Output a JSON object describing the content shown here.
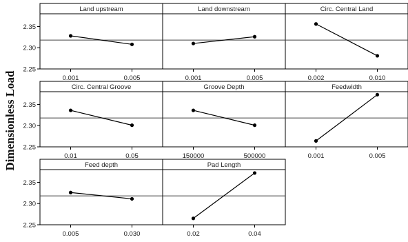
{
  "chart_data": {
    "type": "line",
    "ylabel": "Dimensionless Load",
    "reference_line": 2.318,
    "ylim": [
      2.25,
      2.38
    ],
    "yticks": [
      "2.25",
      "2.30",
      "2.35"
    ],
    "panels": [
      {
        "title": "Land upstream",
        "x": [
          "0.001",
          "0.005"
        ],
        "y": [
          2.328,
          2.308
        ]
      },
      {
        "title": "Land downstream",
        "x": [
          "0.001",
          "0.005"
        ],
        "y": [
          2.31,
          2.326
        ]
      },
      {
        "title": "Circ. Central Land",
        "x": [
          "0.002",
          "0.010"
        ],
        "y": [
          2.356,
          2.281
        ]
      },
      {
        "title": "Circ. Central Groove",
        "x": [
          "0.01",
          "0.05"
        ],
        "y": [
          2.336,
          2.301
        ]
      },
      {
        "title": "Groove Depth",
        "x": [
          "150000",
          "500000"
        ],
        "y": [
          2.336,
          2.301
        ]
      },
      {
        "title": "Feedwidth",
        "x": [
          "0.001",
          "0.005"
        ],
        "y": [
          2.264,
          2.373
        ]
      },
      {
        "title": "Feed depth",
        "x": [
          "0.005",
          "0.030"
        ],
        "y": [
          2.326,
          2.311
        ]
      },
      {
        "title": "Pad Length",
        "x": [
          "0.02",
          "0.04"
        ],
        "y": [
          2.265,
          2.372
        ]
      }
    ]
  }
}
